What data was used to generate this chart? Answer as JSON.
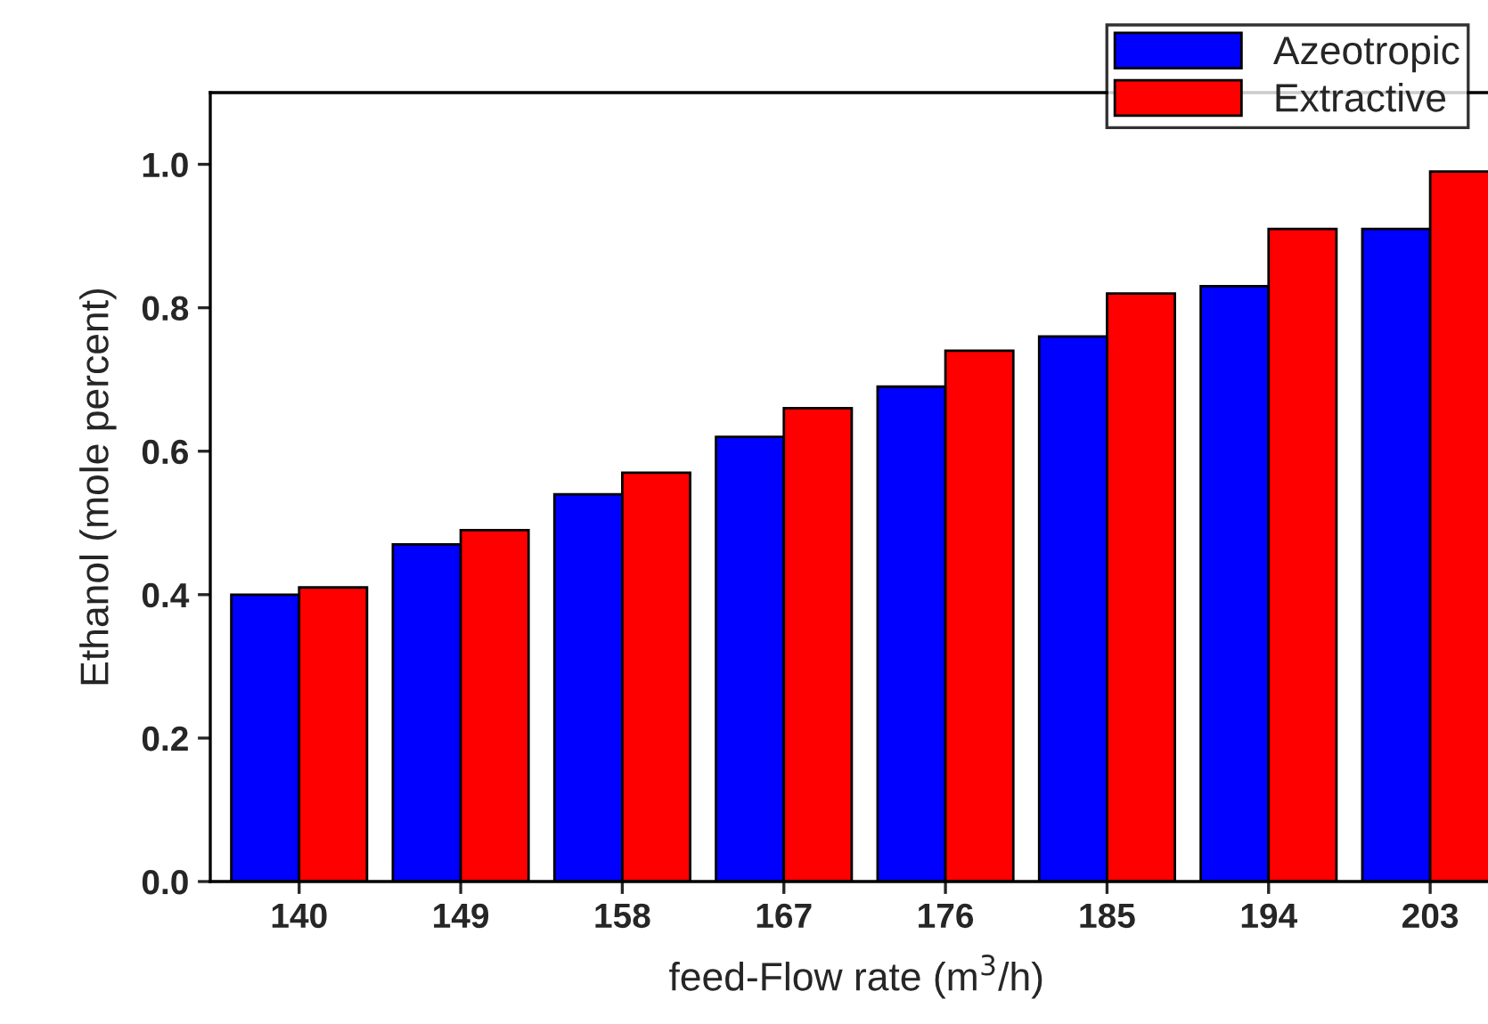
{
  "chart_data": {
    "type": "bar",
    "xlabel": "feed-Flow rate (m$^{3}$/h)",
    "ylabel": "Ethanol (mole percent)",
    "categories": [
      "140",
      "149",
      "158",
      "167",
      "176",
      "185",
      "194",
      "203"
    ],
    "series": [
      {
        "name": "Azeotropic",
        "color": "#0000ff",
        "values": [
          0.4,
          0.47,
          0.54,
          0.62,
          0.69,
          0.76,
          0.83,
          0.91
        ]
      },
      {
        "name": "Extractive",
        "color": "#ff0000",
        "values": [
          0.41,
          0.49,
          0.57,
          0.66,
          0.74,
          0.82,
          0.91,
          0.99
        ]
      }
    ],
    "ylim": [
      0,
      1.1
    ],
    "yticks": [
      {
        "value": 0,
        "label": "0.0"
      },
      {
        "value": 0.2,
        "label": "0.2"
      },
      {
        "value": 0.4,
        "label": "0.4"
      },
      {
        "value": 0.6,
        "label": "0.6"
      },
      {
        "value": 0.8,
        "label": "0.8"
      },
      {
        "value": 1.0,
        "label": "1.0"
      }
    ],
    "grid": false,
    "legend": "top right"
  }
}
